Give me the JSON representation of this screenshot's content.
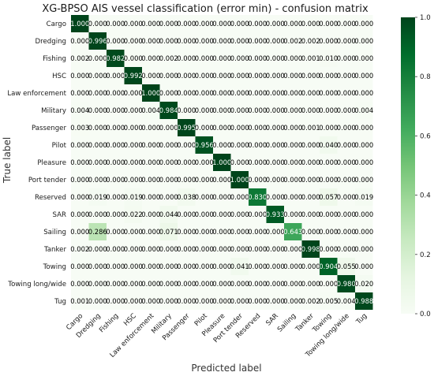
{
  "chart_data": {
    "type": "heatmap",
    "title": "XG-BPSO AIS vessel classification (error min) -  confusion matrix",
    "xlabel": "Predicted label",
    "ylabel": "True label",
    "labels": [
      "Cargo",
      "Dredging",
      "Fishing",
      "HSC",
      "Law enforcement",
      "Military",
      "Passenger",
      "Pilot",
      "Pleasure",
      "Port tender",
      "Reserved",
      "SAR",
      "Sailing",
      "Tanker",
      "Towing",
      "Towing long/wide",
      "Tug"
    ],
    "value_range": [
      0,
      1
    ],
    "colorbar_ticks": [
      "0.0",
      "0.2",
      "0.4",
      "0.6",
      "0.8",
      "1.0"
    ],
    "colormap": [
      "#f7fcf5",
      "#e5f5e0",
      "#c7e9c0",
      "#a1d99b",
      "#74c476",
      "#41ab5d",
      "#238b45",
      "#006d2c",
      "#00441b"
    ],
    "matrix": [
      [
        "1.000",
        "0.000",
        "0.000",
        "0.000",
        "0.000",
        "0.000",
        "0.000",
        "0.000",
        "0.000",
        "0.000",
        "0.000",
        "0.000",
        "0.000",
        "0.000",
        "0.000",
        "0.000",
        "0.000"
      ],
      [
        "0.000",
        "0.996",
        "0.000",
        "0.000",
        "0.000",
        "0.000",
        "0.000",
        "0.000",
        "0.000",
        "0.000",
        "0.000",
        "0.000",
        "0.002",
        "0.002",
        "0.000",
        "0.000",
        "0.000"
      ],
      [
        "0.002",
        "0.000",
        "0.982",
        "0.000",
        "0.000",
        "0.002",
        "0.000",
        "0.000",
        "0.000",
        "0.000",
        "0.000",
        "0.000",
        "0.000",
        "0.001",
        "0.010",
        "0.000",
        "0.000"
      ],
      [
        "0.000",
        "0.000",
        "0.000",
        "0.992",
        "0.000",
        "0.000",
        "0.000",
        "0.000",
        "0.000",
        "0.000",
        "0.000",
        "0.000",
        "0.000",
        "0.000",
        "0.000",
        "0.000",
        "0.000"
      ],
      [
        "0.000",
        "0.000",
        "0.000",
        "0.000",
        "1.000",
        "0.000",
        "0.000",
        "0.000",
        "0.000",
        "0.000",
        "0.000",
        "0.000",
        "0.000",
        "0.000",
        "0.000",
        "0.000",
        "0.000"
      ],
      [
        "0.004",
        "0.000",
        "0.000",
        "0.000",
        "0.004",
        "0.984",
        "0.000",
        "0.000",
        "0.000",
        "0.000",
        "0.000",
        "0.000",
        "0.000",
        "0.000",
        "0.000",
        "0.000",
        "0.004"
      ],
      [
        "0.003",
        "0.000",
        "0.000",
        "0.000",
        "0.000",
        "0.000",
        "0.995",
        "0.000",
        "0.000",
        "0.000",
        "0.000",
        "0.000",
        "0.000",
        "0.001",
        "0.000",
        "0.000",
        "0.000"
      ],
      [
        "0.000",
        "0.000",
        "0.000",
        "0.000",
        "0.000",
        "0.000",
        "0.000",
        "0.956",
        "0.000",
        "0.000",
        "0.000",
        "0.000",
        "0.000",
        "0.000",
        "0.040",
        "0.000",
        "0.000"
      ],
      [
        "0.000",
        "0.000",
        "0.000",
        "0.000",
        "0.000",
        "0.000",
        "0.000",
        "0.000",
        "1.000",
        "0.000",
        "0.000",
        "0.000",
        "0.000",
        "0.000",
        "0.000",
        "0.000",
        "0.000"
      ],
      [
        "0.000",
        "0.000",
        "0.000",
        "0.000",
        "0.000",
        "0.000",
        "0.000",
        "0.000",
        "0.000",
        "1.000",
        "0.000",
        "0.000",
        "0.000",
        "0.000",
        "0.000",
        "0.000",
        "0.000"
      ],
      [
        "0.000",
        "0.019",
        "0.000",
        "0.019",
        "0.000",
        "0.000",
        "0.038",
        "0.000",
        "0.000",
        "0.000",
        "0.830",
        "0.000",
        "0.000",
        "0.000",
        "0.057",
        "0.000",
        "0.019"
      ],
      [
        "0.000",
        "0.000",
        "0.000",
        "0.022",
        "0.000",
        "0.044",
        "0.000",
        "0.000",
        "0.000",
        "0.000",
        "0.000",
        "0.933",
        "0.000",
        "0.000",
        "0.000",
        "0.000",
        "0.000"
      ],
      [
        "0.000",
        "0.286",
        "0.000",
        "0.000",
        "0.000",
        "0.071",
        "0.000",
        "0.000",
        "0.000",
        "0.000",
        "0.000",
        "0.000",
        "0.643",
        "0.000",
        "0.000",
        "0.000",
        "0.000"
      ],
      [
        "0.002",
        "0.000",
        "0.000",
        "0.000",
        "0.000",
        "0.000",
        "0.000",
        "0.000",
        "0.000",
        "0.000",
        "0.000",
        "0.000",
        "0.000",
        "0.998",
        "0.000",
        "0.000",
        "0.000"
      ],
      [
        "0.000",
        "0.000",
        "0.000",
        "0.000",
        "0.000",
        "0.000",
        "0.000",
        "0.000",
        "0.000",
        "0.041",
        "0.000",
        "0.000",
        "0.000",
        "0.000",
        "0.904",
        "0.055",
        "0.000"
      ],
      [
        "0.000",
        "0.000",
        "0.000",
        "0.000",
        "0.000",
        "0.000",
        "0.000",
        "0.000",
        "0.000",
        "0.000",
        "0.000",
        "0.000",
        "0.000",
        "0.000",
        "0.000",
        "0.980",
        "0.020"
      ],
      [
        "0.001",
        "0.000",
        "0.000",
        "0.000",
        "0.000",
        "0.000",
        "0.000",
        "0.000",
        "0.000",
        "0.000",
        "0.000",
        "0.000",
        "0.000",
        "0.002",
        "0.005",
        "0.004",
        "0.988"
      ]
    ]
  }
}
